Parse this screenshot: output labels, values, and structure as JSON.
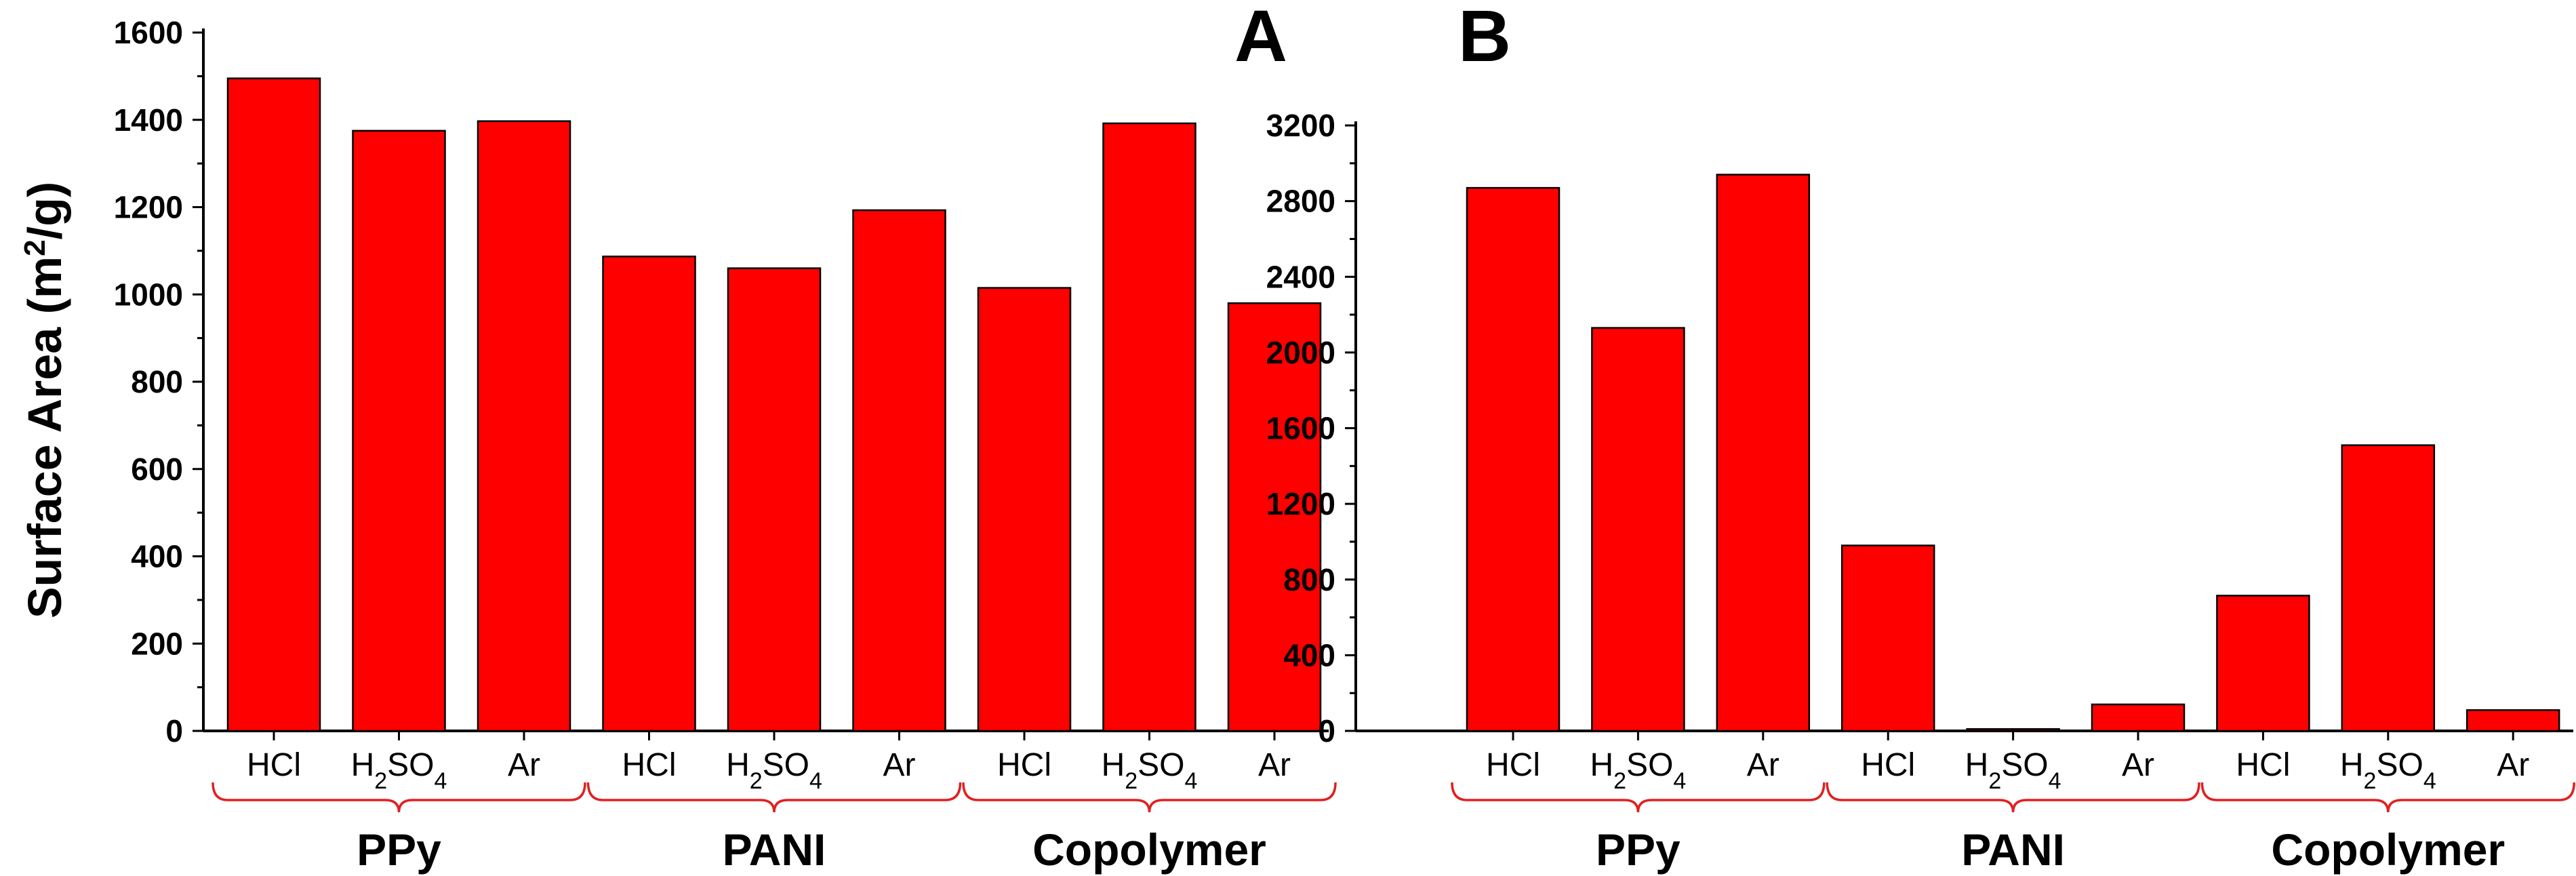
{
  "chart_data": [
    {
      "type": "bar",
      "panel_label": "A",
      "ylabel_parts": [
        "Surface Area (m",
        "2",
        "/g)"
      ],
      "ylim": [
        0,
        1600
      ],
      "yticks": [
        0,
        200,
        400,
        600,
        800,
        1000,
        1200,
        1400,
        1600
      ],
      "grid": false,
      "groups": [
        {
          "name": "PPy",
          "categories": [
            "HCl",
            "H2SO4",
            "Ar"
          ],
          "values": [
            1495,
            1375,
            1397
          ]
        },
        {
          "name": "PANI",
          "categories": [
            "HCl",
            "H2SO4",
            "Ar"
          ],
          "values": [
            1087,
            1060,
            1193
          ]
        },
        {
          "name": "Copolymer",
          "categories": [
            "HCl",
            "H2SO4",
            "Ar"
          ],
          "values": [
            1015,
            1392,
            980
          ]
        }
      ]
    },
    {
      "type": "bar",
      "panel_label": "B",
      "ylabel_parts": [],
      "ylim": [
        0,
        3200
      ],
      "yticks": [
        0,
        400,
        800,
        1200,
        1600,
        2000,
        2400,
        2800,
        3200
      ],
      "grid": false,
      "groups": [
        {
          "name": "PPy",
          "categories": [
            "HCl",
            "H2SO4",
            "Ar"
          ],
          "values": [
            2870,
            2130,
            2940
          ]
        },
        {
          "name": "PANI",
          "categories": [
            "HCl",
            "H2SO4",
            "Ar"
          ],
          "values": [
            980,
            10,
            140
          ]
        },
        {
          "name": "Copolymer",
          "categories": [
            "HCl",
            "H2SO4",
            "Ar"
          ],
          "values": [
            715,
            1510,
            110
          ]
        }
      ]
    }
  ],
  "colors": {
    "bar": "#ff0000",
    "bracket": "#e02020",
    "axis": "#000000"
  }
}
